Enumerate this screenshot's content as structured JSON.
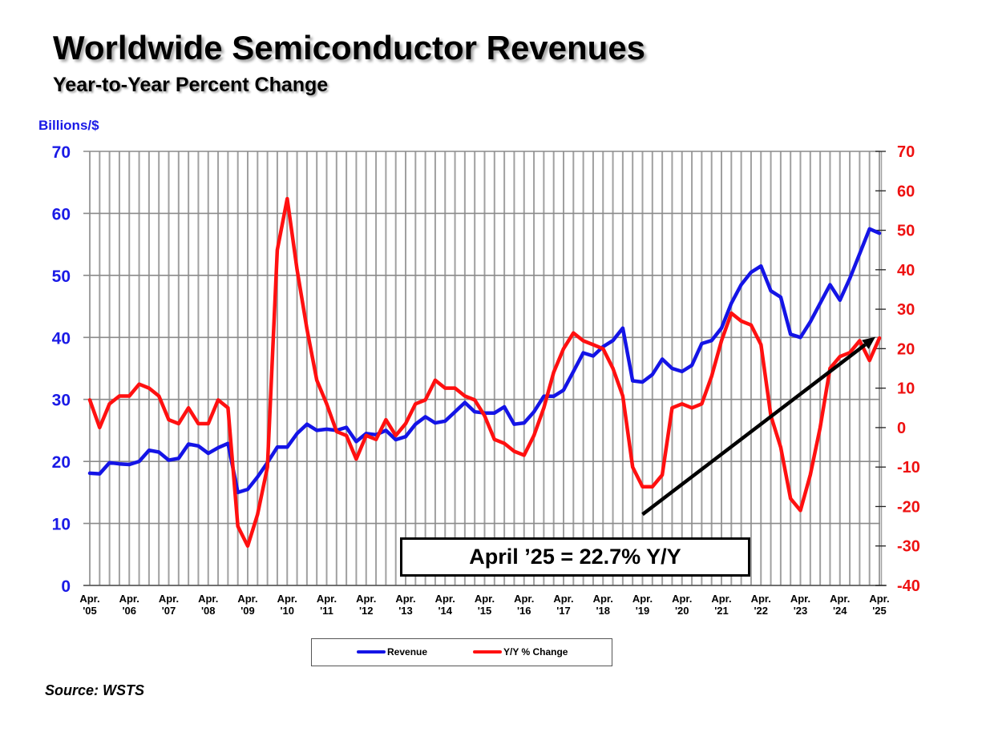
{
  "chart_data": {
    "type": "line",
    "title": "Worldwide Semiconductor Revenues",
    "subtitle": "Year-to-Year Percent Change",
    "ylabel_left": "Billions/$",
    "ylabel_right": "",
    "xlabel": "",
    "ylim_left": [
      0,
      70
    ],
    "ylim_right": [
      -40,
      70
    ],
    "yticks_left": [
      "70",
      "60",
      "50",
      "40",
      "30",
      "20",
      "10",
      "0"
    ],
    "yticks_right": [
      "70",
      "60",
      "50",
      "40",
      "30",
      "20",
      "10",
      "0",
      "-10",
      "-20",
      "-30",
      "-40"
    ],
    "xtick_labels": [
      {
        "line1": "Apr.",
        "line2": "'05"
      },
      {
        "line1": "Apr.",
        "line2": "'06"
      },
      {
        "line1": "Apr.",
        "line2": "'07"
      },
      {
        "line1": "Apr.",
        "line2": "'08"
      },
      {
        "line1": "Apr.",
        "line2": "'09"
      },
      {
        "line1": "Apr.",
        "line2": "'10"
      },
      {
        "line1": "Apr.",
        "line2": "'11"
      },
      {
        "line1": "Apr.",
        "line2": "'12"
      },
      {
        "line1": "Apr.",
        "line2": "'13"
      },
      {
        "line1": "Apr.",
        "line2": "'14"
      },
      {
        "line1": "Apr.",
        "line2": "'15"
      },
      {
        "line1": "Apr.",
        "line2": "'16"
      },
      {
        "line1": "Apr.",
        "line2": "'17"
      },
      {
        "line1": "Apr.",
        "line2": "'18"
      },
      {
        "line1": "Apr.",
        "line2": "'19"
      },
      {
        "line1": "Apr.",
        "line2": "'20"
      },
      {
        "line1": "Apr.",
        "line2": "'21"
      },
      {
        "line1": "Apr.",
        "line2": "'22"
      },
      {
        "line1": "Apr.",
        "line2": "'23"
      },
      {
        "line1": "Apr.",
        "line2": "'24"
      },
      {
        "line1": "Apr.",
        "line2": "'25"
      }
    ],
    "x_start_year": 2005.25,
    "x_end_year": 2025.25,
    "x_step_years": 0.25,
    "grid": true,
    "legend_position": "bottom-center",
    "series": [
      {
        "name": "Revenue",
        "axis": "left",
        "color": "#1414e6",
        "values": [
          18.1,
          18.0,
          19.8,
          19.6,
          19.5,
          20.0,
          21.8,
          21.5,
          20.2,
          20.5,
          22.8,
          22.5,
          21.3,
          22.2,
          22.9,
          15.0,
          15.5,
          17.5,
          19.8,
          22.3,
          22.3,
          24.5,
          26.0,
          25.0,
          25.2,
          25.0,
          25.5,
          23.2,
          24.5,
          24.3,
          25.0,
          23.5,
          24.0,
          26.0,
          27.2,
          26.2,
          26.5,
          28.0,
          29.5,
          28.0,
          27.8,
          27.8,
          28.8,
          26.0,
          26.2,
          28.0,
          30.5,
          30.5,
          31.5,
          34.5,
          37.5,
          37.0,
          38.5,
          39.5,
          41.5,
          33.0,
          32.8,
          34.0,
          36.5,
          35.0,
          34.5,
          35.5,
          39.0,
          39.5,
          41.5,
          45.5,
          48.5,
          50.5,
          51.5,
          47.5,
          46.5,
          40.5,
          40.0,
          42.5,
          45.5,
          48.5,
          46.0,
          49.5,
          53.5,
          57.5,
          56.8
        ]
      },
      {
        "name": "Y/Y % Change",
        "axis": "right",
        "color": "#ff1010",
        "values": [
          7,
          0,
          6,
          8,
          8,
          11,
          10,
          8,
          2,
          1,
          5,
          1,
          1,
          7,
          5,
          -25,
          -30,
          -22,
          -10,
          45,
          58,
          40,
          25,
          12,
          6,
          -1,
          -2,
          -8,
          -2,
          -3,
          2,
          -2,
          1,
          6,
          7,
          12,
          10,
          10,
          8,
          7,
          3,
          -3,
          -4,
          -6,
          -7,
          -2,
          5,
          14,
          20,
          24,
          22,
          21,
          20,
          15,
          8,
          -10,
          -15,
          -15,
          -12,
          5,
          6,
          5,
          6,
          13,
          22,
          29,
          27,
          26,
          21,
          3,
          -5,
          -18,
          -21,
          -12,
          0,
          15,
          18,
          19,
          22,
          17,
          22.7
        ]
      }
    ],
    "annotations": [
      {
        "text": "April ’25 = 22.7% Y/Y",
        "type": "box"
      },
      {
        "type": "arrow",
        "from": {
          "x_year": 2019.25,
          "y_right": -22
        },
        "to": {
          "x_year": 2025.15,
          "y_right": 23
        }
      }
    ],
    "source": "Source: WSTS"
  }
}
